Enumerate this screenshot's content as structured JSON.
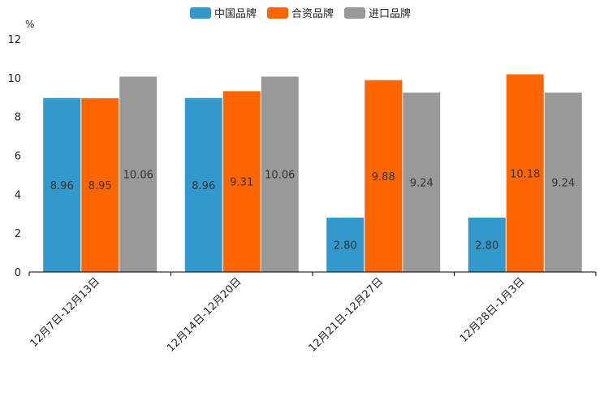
{
  "chart_data": {
    "type": "bar",
    "title": "",
    "unit": "%",
    "xlabel": "",
    "ylabel": "",
    "ylim": [
      0,
      12
    ],
    "yticks": [
      0,
      2,
      4,
      6,
      8,
      10,
      12
    ],
    "grid": false,
    "legend_position": "top-center",
    "categories": [
      "12月7日-12月13日",
      "12月14日-12月20日",
      "12月21日-12月27日",
      "12月28日-1月3日"
    ],
    "series": [
      {
        "name": "中国品牌",
        "color": "#3399cc",
        "values": [
          8.96,
          8.96,
          2.8,
          2.8
        ],
        "labels": [
          "8.96",
          "8.96",
          "2.80",
          "2.80"
        ]
      },
      {
        "name": "合资品牌",
        "color": "#ff6600",
        "values": [
          8.95,
          9.31,
          9.88,
          10.18
        ],
        "labels": [
          "8.95",
          "9.31",
          "9.88",
          "10.18"
        ]
      },
      {
        "name": "进口品牌",
        "color": "#999999",
        "values": [
          10.06,
          10.06,
          9.24,
          9.24
        ],
        "labels": [
          "10.06",
          "10.06",
          "9.24",
          "9.24"
        ]
      }
    ]
  }
}
